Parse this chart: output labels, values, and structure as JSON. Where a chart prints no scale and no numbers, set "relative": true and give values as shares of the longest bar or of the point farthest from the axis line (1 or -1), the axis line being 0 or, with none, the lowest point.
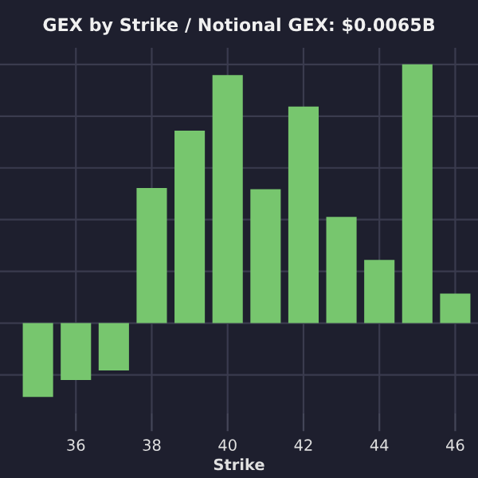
{
  "chart_data": {
    "type": "bar",
    "title": "GEX by Strike / Notional GEX: $0.0065B",
    "xlabel": "Strike",
    "x": [
      35,
      36,
      37,
      38,
      39,
      40,
      41,
      42,
      43,
      44,
      45,
      46
    ],
    "values": [
      -0.285,
      -0.22,
      -0.183,
      0.522,
      0.744,
      0.959,
      0.518,
      0.837,
      0.411,
      0.244,
      1,
      0.114
    ],
    "color": "#77c66e",
    "relative": true,
    "xlim": [
      34,
      46.6
    ],
    "xticks": [
      36,
      38,
      40,
      42,
      44,
      46
    ],
    "grid": true,
    "tick_labels": "x"
  }
}
